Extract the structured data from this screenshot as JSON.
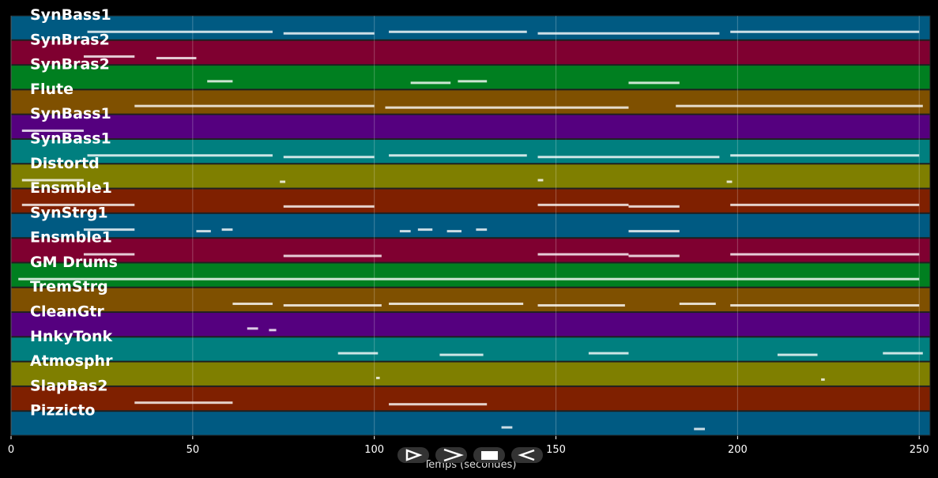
{
  "chart_data": {
    "type": "pianoroll",
    "xlabel": "Temps (secondes)",
    "xlim": [
      0,
      253
    ],
    "xticks": [
      0,
      50,
      100,
      150,
      200,
      250
    ],
    "grid": true,
    "tracks": [
      {
        "name": "SynBass1",
        "color": "#005a82",
        "segments": [
          [
            21,
            72
          ],
          [
            75,
            100
          ],
          [
            104,
            142
          ],
          [
            145,
            195
          ],
          [
            198,
            250
          ]
        ]
      },
      {
        "name": "SynBras2",
        "color": "#7f0030",
        "segments": [
          [
            20,
            34
          ],
          [
            40,
            51
          ]
        ]
      },
      {
        "name": "SynBras2",
        "color": "#007f20",
        "segments": [
          [
            54,
            61
          ],
          [
            110,
            121
          ],
          [
            123,
            131
          ],
          [
            170,
            184
          ]
        ]
      },
      {
        "name": "Flute",
        "color": "#7f5000",
        "segments": [
          [
            34,
            100
          ],
          [
            103,
            170
          ],
          [
            183,
            251
          ]
        ]
      },
      {
        "name": "SynBass1",
        "color": "#55007f",
        "segments": [
          [
            3,
            20
          ]
        ]
      },
      {
        "name": "SynBass1",
        "color": "#007f7f",
        "segments": [
          [
            21,
            72
          ],
          [
            75,
            100
          ],
          [
            104,
            142
          ],
          [
            145,
            195
          ],
          [
            198,
            250
          ]
        ]
      },
      {
        "name": "Distortd",
        "color": "#7f7f00",
        "segments": [
          [
            3,
            20
          ],
          [
            74,
            75.5
          ],
          [
            145,
            146.5
          ],
          [
            197,
            198.5
          ]
        ]
      },
      {
        "name": "Ensmble1",
        "color": "#7f2000",
        "segments": [
          [
            3,
            34
          ],
          [
            75,
            100
          ],
          [
            145,
            170
          ],
          [
            170,
            184
          ],
          [
            198,
            250
          ]
        ]
      },
      {
        "name": "SynStrg1",
        "color": "#005a82",
        "segments": [
          [
            20,
            34
          ],
          [
            51,
            55
          ],
          [
            58,
            61
          ],
          [
            107,
            110
          ],
          [
            112,
            116
          ],
          [
            120,
            124
          ],
          [
            128,
            131
          ],
          [
            170,
            184
          ]
        ]
      },
      {
        "name": "Ensmble1",
        "color": "#7f0030",
        "segments": [
          [
            20,
            34
          ],
          [
            75,
            102
          ],
          [
            145,
            170
          ],
          [
            170,
            184
          ],
          [
            198,
            250
          ]
        ]
      },
      {
        "name": "GM Drums",
        "color": "#007f20",
        "segments": [
          [
            2,
            250
          ]
        ]
      },
      {
        "name": "TremStrg",
        "color": "#7f5000",
        "segments": [
          [
            61,
            72
          ],
          [
            75,
            102
          ],
          [
            104,
            141
          ],
          [
            145,
            169
          ],
          [
            184,
            194
          ],
          [
            198,
            250
          ]
        ]
      },
      {
        "name": "CleanGtr",
        "color": "#55007f",
        "segments": [
          [
            65,
            68
          ],
          [
            71,
            73
          ]
        ]
      },
      {
        "name": "HnkyTonk",
        "color": "#007f7f",
        "segments": [
          [
            90,
            101
          ],
          [
            118,
            130
          ],
          [
            159,
            170
          ],
          [
            211,
            222
          ],
          [
            240,
            251
          ]
        ]
      },
      {
        "name": "Atmosphr",
        "color": "#7f7f00",
        "segments": [
          [
            100.5,
            101.5
          ],
          [
            223,
            224
          ]
        ]
      },
      {
        "name": "SlapBas2",
        "color": "#7f2000",
        "segments": [
          [
            34,
            61
          ],
          [
            104,
            131
          ]
        ]
      },
      {
        "name": "Pizzicto",
        "color": "#005a82",
        "segments": [
          [
            135,
            138
          ],
          [
            188,
            191
          ]
        ]
      }
    ]
  }
}
